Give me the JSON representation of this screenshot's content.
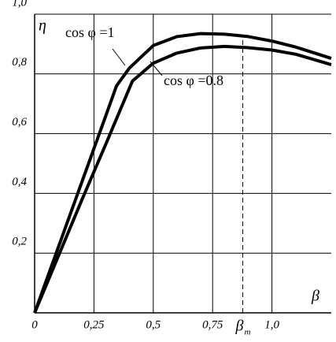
{
  "chart_data": {
    "type": "line",
    "xlabel": "β",
    "ylabel": "η",
    "xlim": [
      0,
      1.25
    ],
    "ylim": [
      0,
      1.0
    ],
    "xticks": [
      0,
      {
        "value": 0.25,
        "label": "0,25"
      },
      {
        "value": 0.5,
        "label": "0,5"
      },
      {
        "value": 0.75,
        "label": "0,75"
      },
      {
        "value": 1.0,
        "label": "1,0"
      }
    ],
    "yticks": [
      {
        "value": 0.2,
        "label": "0,2"
      },
      {
        "value": 0.4,
        "label": "0,4"
      },
      {
        "value": 0.6,
        "label": "0,6"
      },
      {
        "value": 0.8,
        "label": "0,8"
      },
      {
        "value": 1.0,
        "label": "1,0"
      }
    ],
    "grid": true,
    "series": [
      {
        "name": "cos φ =1",
        "color": "#000000",
        "x": [
          0,
          0.1,
          0.2,
          0.3,
          0.345,
          0.4,
          0.5,
          0.6,
          0.7,
          0.8,
          0.9,
          1.0,
          1.1,
          1.25
        ],
        "values": [
          0,
          0.22,
          0.44,
          0.66,
          0.76,
          0.82,
          0.895,
          0.925,
          0.935,
          0.933,
          0.925,
          0.91,
          0.89,
          0.852
        ]
      },
      {
        "name": "cos φ =0.8",
        "color": "#000000",
        "x": [
          0,
          0.1,
          0.2,
          0.3,
          0.412,
          0.5,
          0.6,
          0.7,
          0.8,
          0.9,
          1.0,
          1.1,
          1.25
        ],
        "values": [
          0,
          0.19,
          0.38,
          0.565,
          0.776,
          0.836,
          0.87,
          0.887,
          0.892,
          0.888,
          0.88,
          0.866,
          0.831
        ]
      }
    ],
    "marker_line": {
      "x": 0.877,
      "label": "β",
      "subscript": "m"
    }
  }
}
